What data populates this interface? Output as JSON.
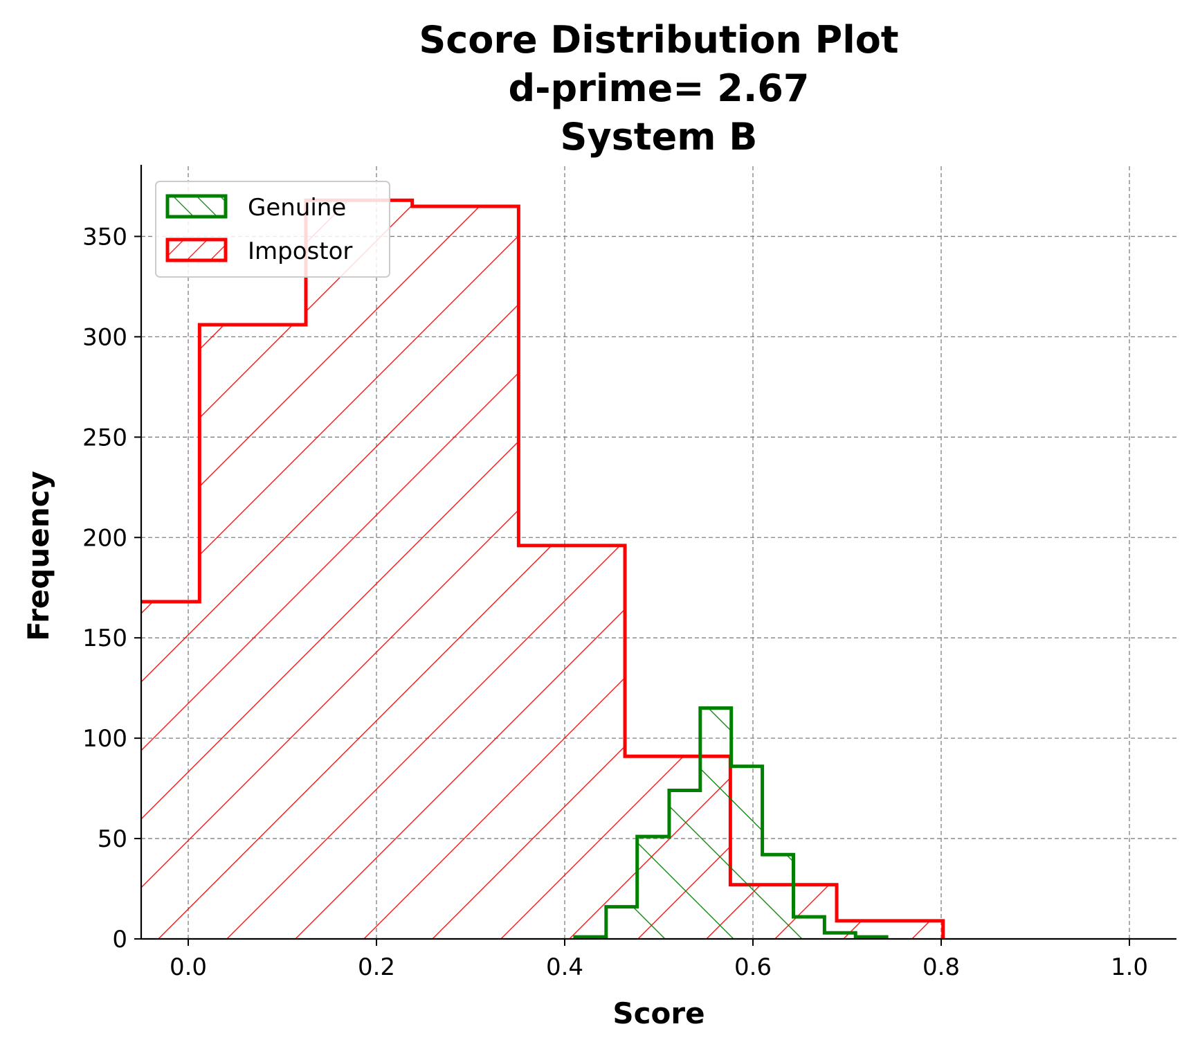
{
  "chart_data": {
    "type": "histogram",
    "title_lines": [
      "Score Distribution Plot",
      "d-prime= 2.67",
      "System B"
    ],
    "xlabel": "Score",
    "ylabel": "Frequency",
    "xlim": [
      -0.05,
      1.05
    ],
    "ylim": [
      0,
      385
    ],
    "xticks": [
      0.0,
      0.2,
      0.4,
      0.6,
      0.8,
      1.0
    ],
    "xtick_labels": [
      "0.0",
      "0.2",
      "0.4",
      "0.6",
      "0.8",
      "1.0"
    ],
    "yticks": [
      0,
      50,
      100,
      150,
      200,
      250,
      300,
      350
    ],
    "ytick_labels": [
      "0",
      "50",
      "100",
      "150",
      "200",
      "250",
      "300",
      "350"
    ],
    "grid": true,
    "legend_position": "upper-left",
    "series": [
      {
        "name": "Genuine",
        "color": "#008000",
        "hatch": "forward-diagonal",
        "bin_edges": [
          0.411,
          0.444,
          0.477,
          0.511,
          0.544,
          0.577,
          0.61,
          0.643,
          0.676,
          0.709,
          0.742
        ],
        "counts": [
          1,
          16,
          51,
          74,
          115,
          86,
          42,
          11,
          3,
          1
        ]
      },
      {
        "name": "Impostor",
        "color": "#ff0000",
        "hatch": "back-diagonal",
        "bin_edges": [
          -0.101,
          0.012,
          0.125,
          0.238,
          0.351,
          0.464,
          0.576,
          0.689,
          0.802
        ],
        "counts": [
          168,
          306,
          368,
          365,
          196,
          91,
          27,
          9
        ]
      }
    ]
  }
}
